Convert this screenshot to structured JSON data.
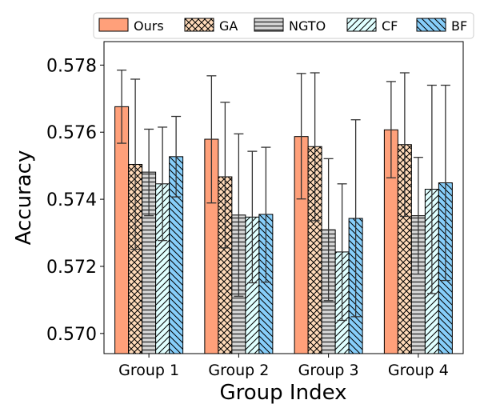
{
  "chart_data": {
    "type": "bar",
    "title": "",
    "xlabel": "Group Index",
    "ylabel": "Accuracy",
    "ylim": [
      0.5694,
      0.5787
    ],
    "yticks": [
      0.57,
      0.572,
      0.574,
      0.576,
      0.578
    ],
    "ytick_labels": [
      "0.570",
      "0.572",
      "0.574",
      "0.576",
      "0.578"
    ],
    "categories": [
      "Group 1",
      "Group 2",
      "Group 3",
      "Group 4"
    ],
    "legend_position": "top",
    "series": [
      {
        "name": "Ours",
        "color": "#ffa07a",
        "pattern": "none",
        "values": [
          0.57676,
          0.57579,
          0.57587,
          0.57607
        ],
        "err_low": [
          0.57567,
          0.57389,
          0.57401,
          0.57464
        ],
        "err_high": [
          0.57785,
          0.57768,
          0.57775,
          0.57751
        ]
      },
      {
        "name": "GA",
        "color": "#ffdab9",
        "pattern": "cross",
        "values": [
          0.57504,
          0.57467,
          0.57557,
          0.57563
        ],
        "err_low": [
          0.57251,
          0.57255,
          0.57336,
          0.57349
        ],
        "err_high": [
          0.57758,
          0.57689,
          0.57777,
          0.57777
        ]
      },
      {
        "name": "NGTO",
        "color": "#d3d3d3",
        "pattern": "horizontal",
        "values": [
          0.57481,
          0.57353,
          0.57309,
          0.57351
        ],
        "err_low": [
          0.57351,
          0.57111,
          0.57098,
          0.57177
        ],
        "err_high": [
          0.57609,
          0.57595,
          0.57521,
          0.57525
        ]
      },
      {
        "name": "CF",
        "color": "#e0ffff",
        "pattern": "forward",
        "values": [
          0.57446,
          0.57347,
          0.57243,
          0.5743
        ],
        "err_low": [
          0.57277,
          0.57151,
          0.57039,
          0.57119
        ],
        "err_high": [
          0.57615,
          0.57543,
          0.57446,
          0.5774
        ]
      },
      {
        "name": "BF",
        "color": "#87cefa",
        "pattern": "backward",
        "values": [
          0.57527,
          0.57355,
          0.57343,
          0.57449
        ],
        "err_low": [
          0.57407,
          0.57153,
          0.5705,
          0.57158
        ],
        "err_high": [
          0.57647,
          0.57555,
          0.57637,
          0.5774
        ]
      }
    ]
  }
}
